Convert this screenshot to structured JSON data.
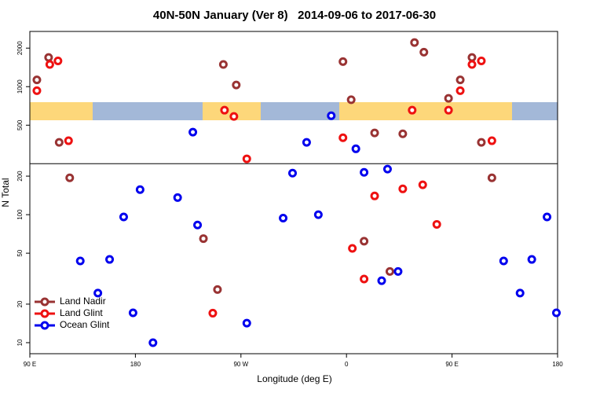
{
  "chart_data": {
    "type": "scatter",
    "title": "40N-50N January (Ver 8)   2014-09-06 to 2017-06-30",
    "x_label": "Longitude (deg E)",
    "y_label": "N Total",
    "xlim": [
      90,
      540
    ],
    "xticks": [
      {
        "value": 90,
        "label": "90 E"
      },
      {
        "value": 180,
        "label": "180"
      },
      {
        "value": 270,
        "label": "90 W"
      },
      {
        "value": 360,
        "label": "0"
      },
      {
        "value": 450,
        "label": "90 E"
      },
      {
        "value": 540,
        "label": "180"
      }
    ],
    "ylim": [
      8.2,
      2700
    ],
    "yticks": [
      10,
      20,
      50,
      100,
      200,
      500,
      1000,
      2000
    ],
    "y_scale": "log",
    "hline": 250,
    "legend_position": "lower left",
    "series": [
      {
        "name": "Land Nadir",
        "color": "#993333",
        "x": [
          96,
          106,
          115,
          124,
          255,
          266,
          238,
          250,
          357,
          364,
          384,
          408,
          418,
          426,
          375,
          397,
          447,
          457,
          467,
          475,
          484
        ],
        "values": [
          1130,
          1690,
          367,
          194,
          1490,
          1030,
          65,
          26,
          1570,
          790,
          435,
          428,
          2210,
          1860,
          62,
          36,
          810,
          1130,
          1690,
          367,
          194
        ]
      },
      {
        "name": "Land Glint",
        "color": "#ee1111",
        "x": [
          96,
          107,
          114,
          123,
          256,
          264,
          275,
          246,
          357,
          365,
          375,
          384,
          408,
          416,
          425,
          437,
          447,
          457,
          467,
          475,
          484
        ],
        "values": [
          930,
          1490,
          1590,
          378,
          655,
          585,
          273,
          17,
          399,
          54.5,
          31.4,
          140,
          159,
          655,
          171,
          84,
          655,
          930,
          1490,
          1590,
          378
        ]
      },
      {
        "name": "Ocean Glint",
        "color": "#0000ee",
        "x": [
          133,
          148,
          158,
          170,
          178,
          184,
          195,
          216,
          233,
          229,
          275,
          306,
          314,
          326,
          336,
          347,
          368,
          375,
          390,
          395,
          404,
          494,
          508,
          518,
          531,
          539
        ],
        "values": [
          43.5,
          24.4,
          44.7,
          96,
          17.1,
          157,
          10,
          136,
          83,
          441,
          14.2,
          94,
          211,
          367,
          100,
          593,
          327,
          214,
          30.5,
          227,
          36,
          43.5,
          24.4,
          44.7,
          96,
          17.1
        ]
      }
    ]
  }
}
